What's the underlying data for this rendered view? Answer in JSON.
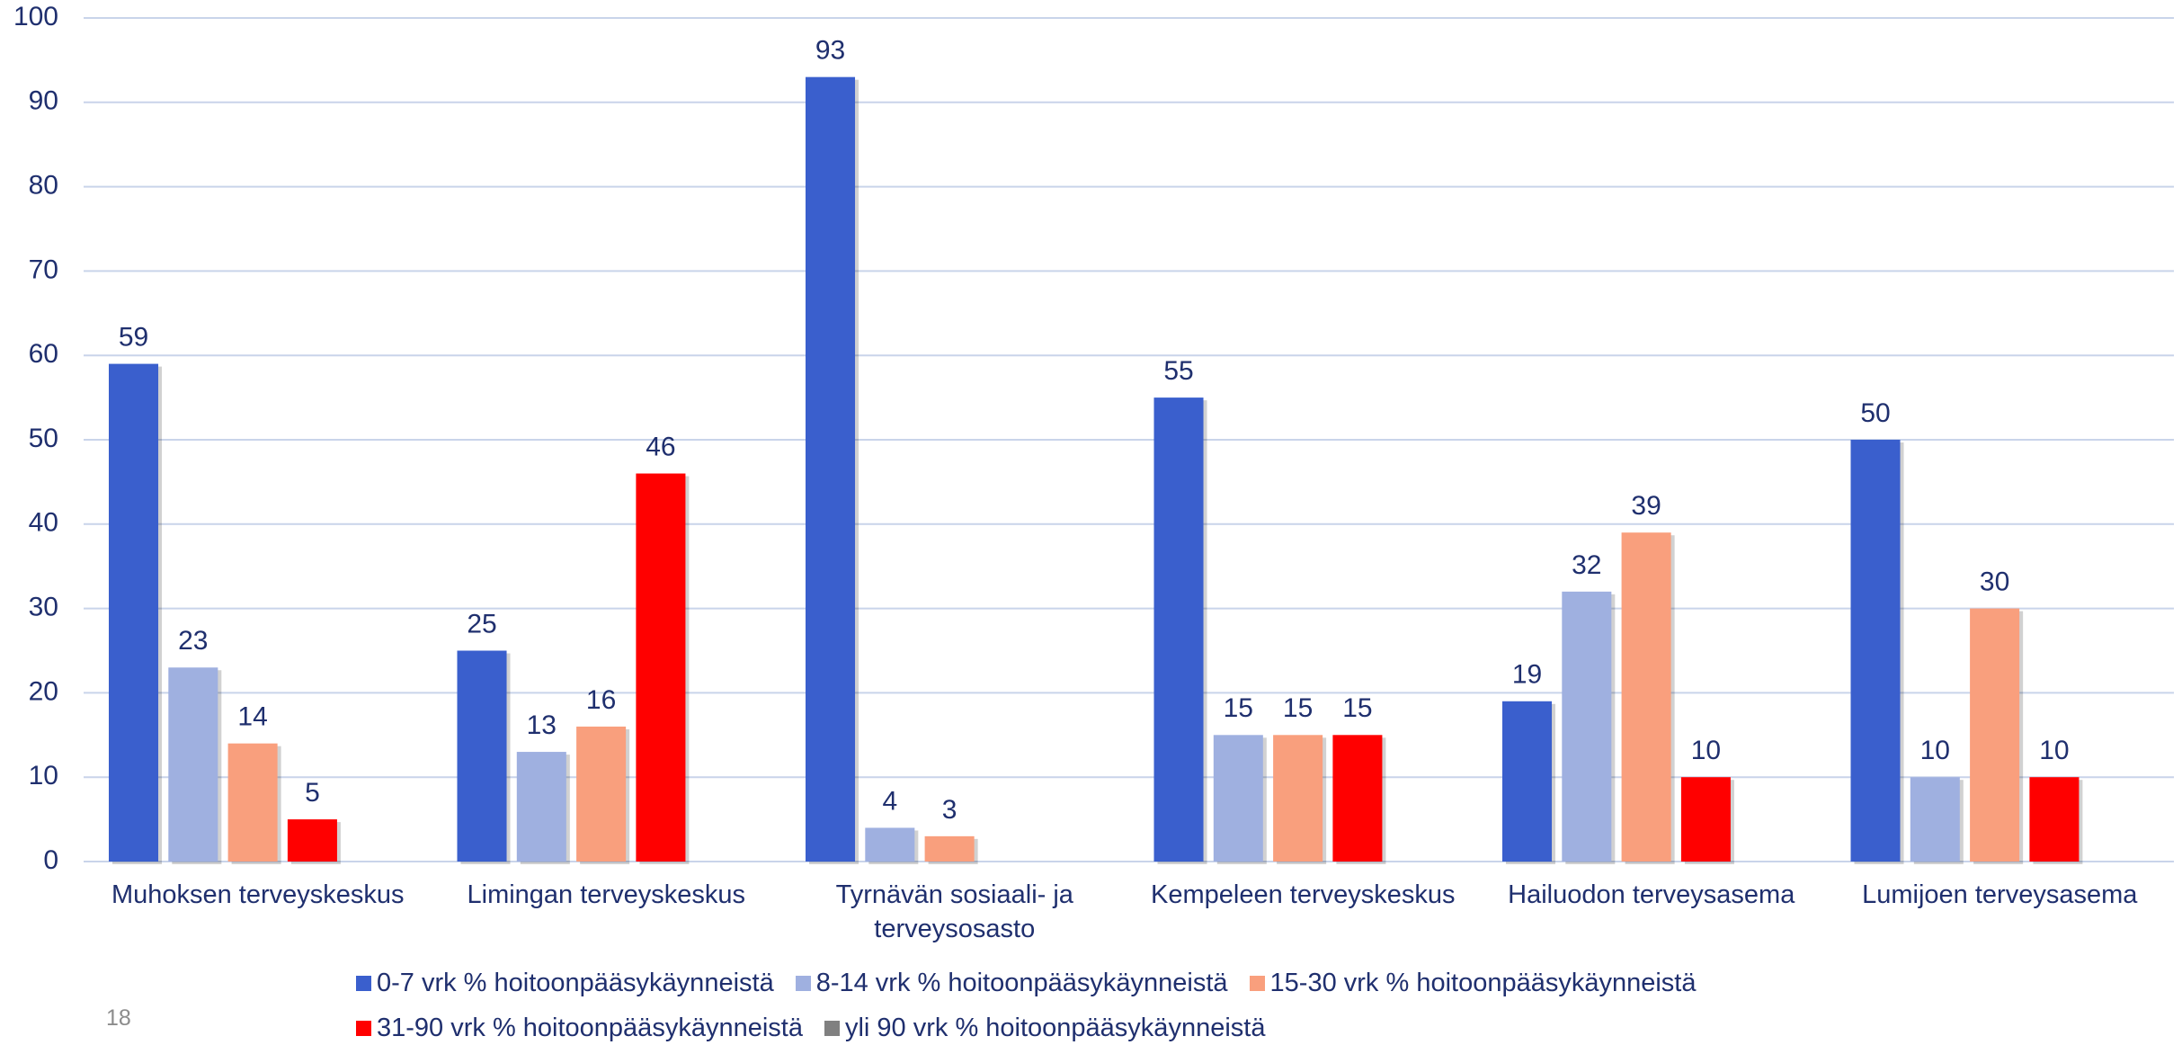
{
  "chart_data": {
    "type": "bar",
    "categories": [
      "Muhoksen terveyskeskus",
      "Limingan terveyskeskus",
      "Tyrnävän sosiaali- ja terveysosasto",
      "Kempeleen terveyskeskus",
      "Hailuodon terveysasema",
      "Lumijoen terveysasema"
    ],
    "series": [
      {
        "name": "0-7 vrk % hoitoonpääsykäynneistä",
        "color": "#3a5fcd",
        "values": [
          59,
          25,
          93,
          55,
          19,
          50
        ]
      },
      {
        "name": "8-14 vrk % hoitoonpääsykäynneistä",
        "color": "#9fb0e0",
        "values": [
          23,
          13,
          4,
          15,
          32,
          10
        ]
      },
      {
        "name": "15-30 vrk % hoitoonpääsykäynneistä",
        "color": "#f99f7d",
        "values": [
          14,
          16,
          3,
          15,
          39,
          30
        ]
      },
      {
        "name": "31-90 vrk % hoitoonpääsykäynneistä",
        "color": "#ff0000",
        "values": [
          5,
          46,
          null,
          15,
          10,
          10
        ]
      },
      {
        "name": "yli 90 vrk % hoitoonpääsykäynneistä",
        "color": "#808080",
        "values": [
          null,
          null,
          null,
          null,
          null,
          null
        ]
      }
    ],
    "ylim": [
      0,
      100
    ],
    "yticks": [
      0,
      10,
      20,
      30,
      40,
      50,
      60,
      70,
      80,
      90,
      100
    ],
    "grid": true,
    "legend": "bottom"
  },
  "page_number": "18"
}
